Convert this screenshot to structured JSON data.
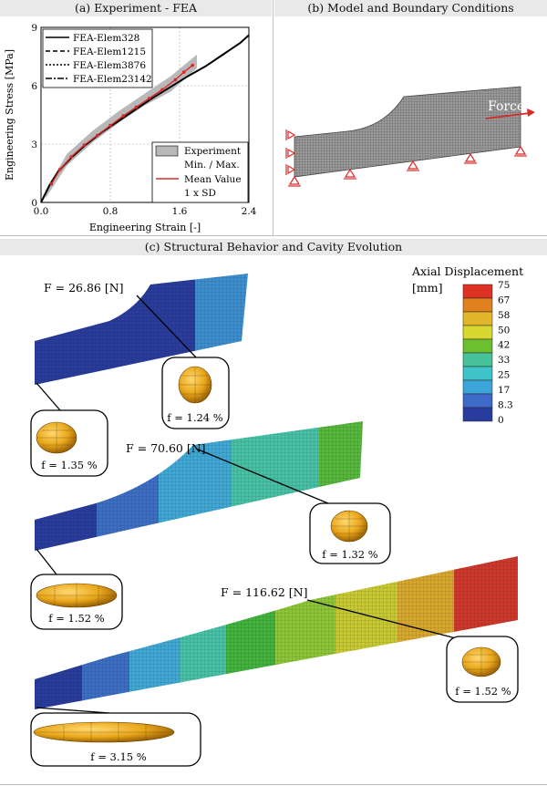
{
  "panels": {
    "a_title": "(a) Experiment - FEA",
    "b_title": "(b) Model and Boundary Conditions",
    "c_title": "(c) Structural Behavior and Cavity Evolution"
  },
  "chart_data": {
    "type": "line",
    "xlabel": "Engineering Strain [-]",
    "ylabel": "Engineering Stress [MPa]",
    "xlim": [
      0,
      2.4
    ],
    "ylim": [
      0,
      9
    ],
    "xticks": [
      "0.0",
      "0.8",
      "1.6",
      "2.4"
    ],
    "yticks": [
      "0",
      "3",
      "6",
      "9"
    ],
    "grid": true,
    "legend_top": [
      "FEA-Elem328",
      "FEA-Elem1215",
      "FEA-Elem3876",
      "FEA-Elem23142"
    ],
    "legend_bottom": [
      "Experiment",
      "Min. / Max.",
      "Mean Value",
      "1 x SD"
    ],
    "fea_curve": {
      "x": [
        0,
        0.1,
        0.2,
        0.35,
        0.5,
        0.7,
        0.9,
        1.1,
        1.3,
        1.5,
        1.7,
        1.9,
        2.1,
        2.3,
        2.4
      ],
      "y": [
        0,
        0.9,
        1.6,
        2.3,
        2.9,
        3.6,
        4.2,
        4.8,
        5.4,
        5.95,
        6.5,
        7.0,
        7.6,
        8.2,
        8.6
      ]
    },
    "experiment_mean": {
      "x": [
        0.12,
        0.22,
        0.35,
        0.5,
        0.65,
        0.8,
        0.95,
        1.1,
        1.25,
        1.4,
        1.55,
        1.65,
        1.75
      ],
      "y": [
        0.95,
        1.7,
        2.35,
        2.95,
        3.45,
        3.95,
        4.45,
        4.9,
        5.35,
        5.8,
        6.3,
        6.7,
        7.05
      ]
    },
    "experiment_band": {
      "x": [
        0.05,
        0.3,
        0.6,
        0.9,
        1.2,
        1.5,
        1.8
      ],
      "lower": [
        0.2,
        1.9,
        3.1,
        4.1,
        5.0,
        5.7,
        6.9
      ],
      "upper": [
        0.6,
        2.5,
        3.7,
        4.7,
        5.6,
        6.5,
        7.6
      ]
    }
  },
  "model": {
    "force_label": "Force"
  },
  "colorbar": {
    "title": "Axial Displacement",
    "unit": "[mm]",
    "ticks": [
      "75",
      "67",
      "58",
      "50",
      "42",
      "33",
      "25",
      "17",
      "8.3",
      "0"
    ],
    "colors": [
      "#dd3224",
      "#e0801f",
      "#e3b52a",
      "#d8d830",
      "#6cbf2e",
      "#47c29a",
      "#3ec3c9",
      "#3ba4d9",
      "#3e6ac9",
      "#283c9e"
    ]
  },
  "states": [
    {
      "force": "F = 26.86 [N]",
      "cavity_right": "f = 1.24 %",
      "cavity_left": "f = 1.35 %"
    },
    {
      "force": "F = 70.60 [N]",
      "cavity_right": "f = 1.32 %",
      "cavity_left": "f = 1.52 %"
    },
    {
      "force": "F = 116.62 [N]",
      "cavity_right": "f = 1.52 %",
      "cavity_left": "f = 3.15 %"
    }
  ]
}
